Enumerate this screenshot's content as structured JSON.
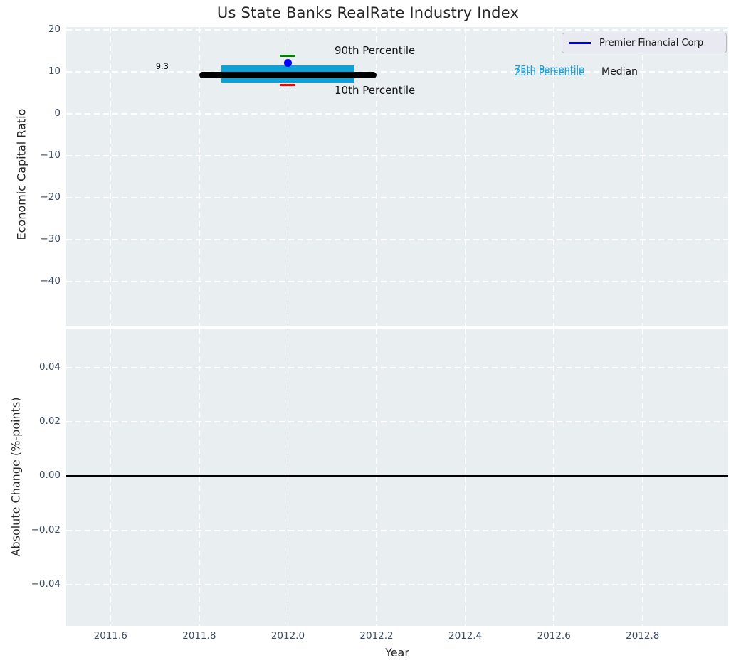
{
  "chart_data": {
    "type": "boxplot-timeseries",
    "title": "Us State Banks RealRate Industry Index",
    "x_axis": {
      "label": "Year",
      "xlim": [
        2011.5,
        2012.993
      ],
      "tick_values": [
        2011.6,
        2011.8,
        2012.0,
        2012.2,
        2012.4,
        2012.6,
        2012.8
      ],
      "tick_labels": [
        "2011.6",
        "2011.8",
        "2012.0",
        "2012.2",
        "2012.4",
        "2012.6",
        "2012.8"
      ]
    },
    "top_panel": {
      "ylabel": "Economic Capital Ratio",
      "ylim": [
        -50.5,
        20.68
      ],
      "tick_values": [
        20,
        10,
        0,
        -10,
        -20,
        -30,
        -40
      ],
      "tick_labels": [
        "20",
        "10",
        "0",
        "−10",
        "−20",
        "−30",
        "−40"
      ],
      "grid": "white dashed"
    },
    "bottom_panel": {
      "ylabel": "Absolute Change (%-points)",
      "ylim": [
        -0.0552,
        0.0544
      ],
      "tick_values": [
        0.04,
        0.02,
        0.0,
        -0.02,
        -0.04
      ],
      "tick_labels": [
        "0.04",
        "0.02",
        "0.00",
        "−0.02",
        "−0.04"
      ],
      "zero_line_value": 0.0,
      "grid": "white dashed"
    },
    "industry_box": {
      "year": 2012.0,
      "median": 9.3,
      "p75": 11.6,
      "p25": 7.4,
      "p90": 13.8,
      "p10": 6.9,
      "box_x_range": [
        2011.85,
        2012.15
      ],
      "median_x_range": [
        2011.8,
        2012.2
      ]
    },
    "company_point": {
      "name": "Premier Financial Corp",
      "year": 2012.0,
      "value": 12.1
    },
    "annotations": {
      "median_value_label": "9.3",
      "p90_label": "90th Percentile",
      "p10_label": "10th Percentile",
      "p75_label": "75th Percentile",
      "p25_label": "25th Percentile",
      "median_label": "Median"
    },
    "legend": {
      "position": "upper right",
      "entries": [
        {
          "label": "Premier Financial Corp",
          "color": "#0000e1"
        }
      ]
    },
    "colors": {
      "box_fill": "#0ca2d8",
      "median_line": "#000000",
      "p90_cap": "#008000",
      "p10_cap": "#ff0000",
      "company_marker": "#0000ff",
      "percentile_label_text": "#189fd6",
      "annotation_text": "#111111",
      "panel_background": "#e9eef0",
      "zero_line": "#000000"
    }
  }
}
